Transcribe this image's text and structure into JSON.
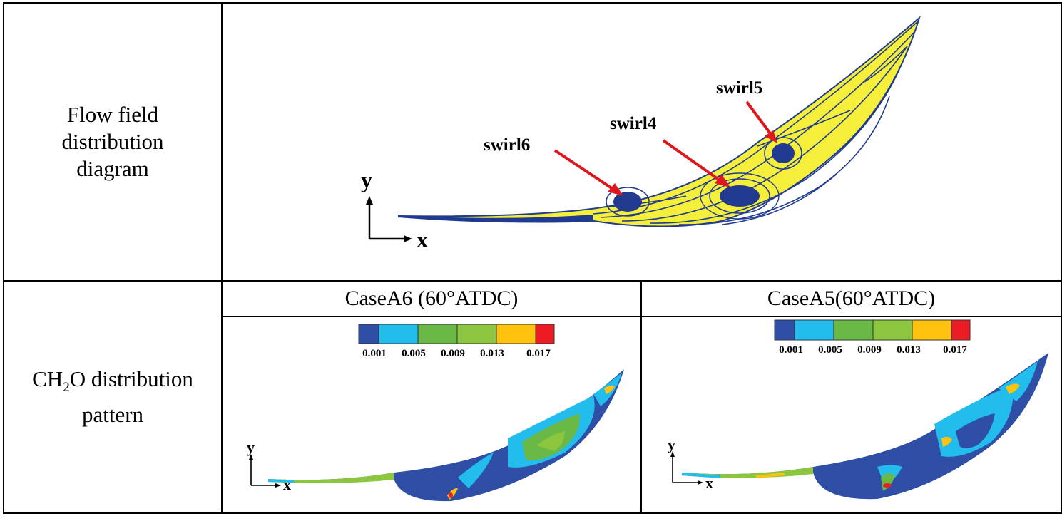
{
  "row1": {
    "label_lines": [
      "Flow field",
      "distribution",
      "diagram"
    ],
    "swirls": [
      "swirl6",
      "swirl4",
      "swirl5"
    ],
    "axis_y": "y",
    "axis_x": "x"
  },
  "row2": {
    "label_pre": "CH",
    "label_sub": "2",
    "label_post": "O distribution",
    "label_line2": "pattern"
  },
  "cases": [
    {
      "title": "CaseA6 (60°ATDC)",
      "legend_ticks": [
        "0.001",
        "0.005",
        "0.009",
        "0.013",
        "0.017"
      ],
      "axis_y": "y",
      "axis_x": "x"
    },
    {
      "title": "CaseA5(60°ATDC)",
      "legend_ticks": [
        "0.001",
        "0.005",
        "0.009",
        "0.013",
        "0.017"
      ],
      "axis_y": "y",
      "axis_x": "x"
    }
  ],
  "colors": {
    "blue": "#2f4fa6",
    "cyan": "#22bdec",
    "green": "#6ab845",
    "lime": "#8cc63f",
    "yellow": "#ffc20e",
    "red": "#ed1c24",
    "flow_fill": "#f5ef3c",
    "streamline": "#1f3a8f",
    "arrow": "#e0161d"
  }
}
